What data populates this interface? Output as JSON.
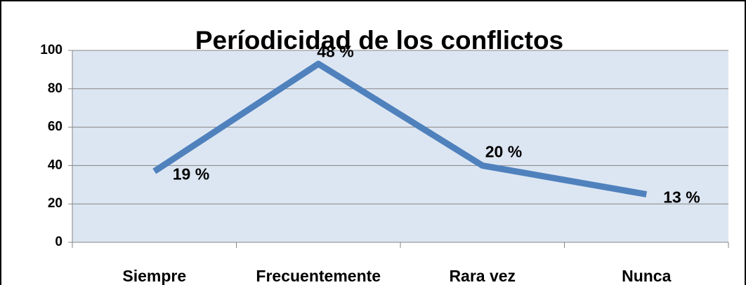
{
  "chart_data": {
    "type": "line",
    "title": "Períodicidad de los conflictos",
    "categories": [
      "Siempre",
      "Frecuentemente",
      "Rara vez",
      "Nunca"
    ],
    "values": [
      37,
      93,
      40,
      25
    ],
    "annotations": [
      "19 %",
      "48 %",
      "20 %",
      "13 %"
    ],
    "color": "#4f81bd",
    "ylim": [
      0,
      100
    ],
    "yticks": [
      0,
      20,
      40,
      60,
      80,
      100
    ],
    "grid": true
  }
}
